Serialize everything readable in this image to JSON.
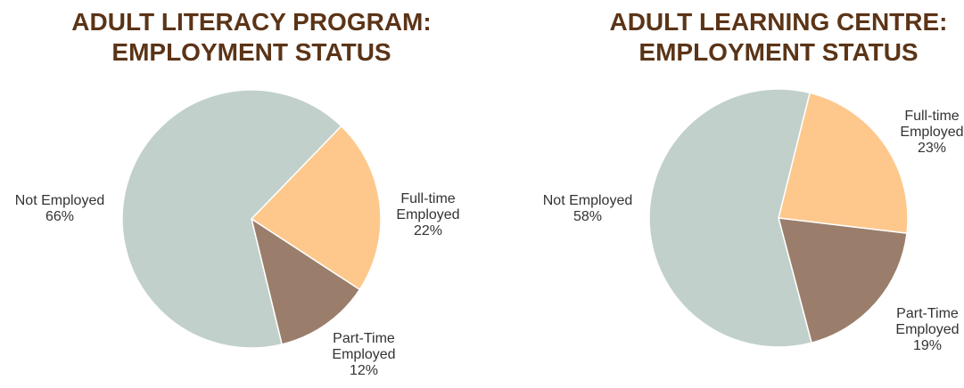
{
  "chart_data": [
    {
      "type": "pie",
      "title": "ADULT LITERACY PROGRAM: EMPLOYMENT STATUS",
      "categories": [
        "Full-time Employed",
        "Part-Time Employed",
        "Not Employed"
      ],
      "values": [
        22,
        12,
        66
      ],
      "value_labels": [
        "22%",
        "12%",
        "66%"
      ],
      "colors": [
        "#fec88c",
        "#9a7e6b",
        "#c1d0ca"
      ]
    },
    {
      "type": "pie",
      "title": "ADULT LEARNING CENTRE: EMPLOYMENT STATUS",
      "categories": [
        "Full-time Employed",
        "Part-Time Employed",
        "Not Employed"
      ],
      "values": [
        23,
        19,
        58
      ],
      "value_labels": [
        "23%",
        "19%",
        "58%"
      ],
      "colors": [
        "#fec88c",
        "#9a7e6b",
        "#c1d0ca"
      ]
    }
  ]
}
